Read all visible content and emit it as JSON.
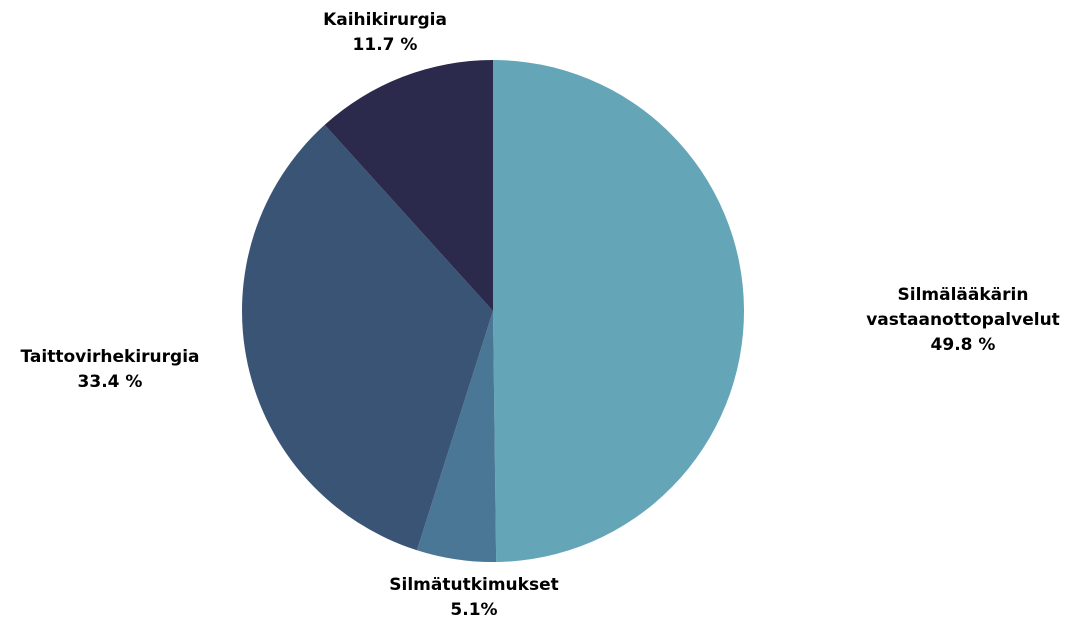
{
  "chart_data": {
    "type": "pie",
    "categories": [
      "Silmälääkärin vastaanottopalvelut",
      "Silmätutkimukset",
      "Taittovirhekirurgia",
      "Kaihikirurgia"
    ],
    "values": [
      49.8,
      5.1,
      33.4,
      11.7
    ],
    "value_labels": [
      "49.8 %",
      "5.1%",
      "33.4 %",
      "11.7 %"
    ],
    "colors": [
      "#64a5b8",
      "#4a7795",
      "#3a5475",
      "#2b2a4c"
    ]
  }
}
